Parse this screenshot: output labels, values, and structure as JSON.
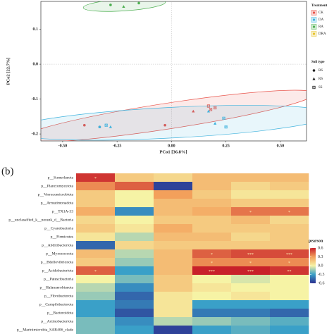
{
  "chart_data": [
    {
      "type": "scatter",
      "xlabel": "PCo1 [36.8%]",
      "ylabel": "PCo2 [22.7%]",
      "xlim": [
        -0.6,
        0.62
      ],
      "ylim": [
        -0.22,
        0.18
      ],
      "xticks": [
        {
          "value": -0.5,
          "label": "-0.50"
        },
        {
          "value": -0.25,
          "label": "-0.25"
        },
        {
          "value": 0,
          "label": "0.00"
        },
        {
          "value": 0.25,
          "label": "0.25"
        },
        {
          "value": 0.5,
          "label": "0.50"
        }
      ],
      "yticks": [
        -0.2,
        -0.1,
        {
          "value": 0,
          "label": "0.0"
        },
        0.1
      ],
      "zero_lines": true,
      "ellipses": true,
      "legend_title": "Treatment",
      "shape_legend_title": "Soil type",
      "shapes": [
        "BS",
        "RS",
        "SS"
      ],
      "series": [
        {
          "name": "CK",
          "color": "#e8534a",
          "x": [
            -0.4,
            -0.33,
            -0.03,
            0.1,
            0.17,
            0.18,
            0.2
          ],
          "y": [
            -0.175,
            -0.18,
            -0.175,
            -0.135,
            -0.12,
            -0.13,
            -0.125
          ],
          "shape": [
            "BS",
            "BS",
            "BS",
            "RS",
            "SS",
            "SS",
            "SS"
          ]
        },
        {
          "name": "DA",
          "color": "#3fb2dd",
          "x": [
            -0.33,
            -0.3,
            -0.28,
            0.17,
            0.2,
            0.24,
            0.25
          ],
          "y": [
            -0.18,
            -0.175,
            -0.18,
            -0.135,
            -0.17,
            -0.155,
            -0.18
          ],
          "shape": [
            "BS",
            "SS",
            "RS",
            "RS",
            "RS",
            "SS",
            "SS"
          ]
        },
        {
          "name": "RA",
          "color": "#4caf50",
          "x": [
            -0.28,
            -0.22,
            -0.15
          ],
          "y": [
            0.17,
            0.165,
            0.175
          ],
          "shape": [
            "BS",
            "RS",
            "BS"
          ]
        },
        {
          "name": "DRA",
          "color": "#e6c229",
          "x": [],
          "y": [],
          "shape": []
        }
      ]
    },
    {
      "type": "heatmap",
      "panel_label": "(b)",
      "legend_title": "pearson",
      "rows": [
        "p__Sumerlaeota",
        "p__Planctomycetota",
        "p__Verrucomicrobiota",
        "p__Armatimonadota",
        "p__TX1A-33",
        "p__unclassified_k__norank_d__Bacteria",
        "p__Cyanobacteria",
        "p__Firmicutes",
        "p__Abditibacteriota",
        "p__Myxococcota",
        "p__Bdellovibrionota",
        "p__Acidobacteriota",
        "p__Patescibacteria",
        "p__Halanaerobiaeota",
        "p__Fibrobacterota",
        "p__Campilobacterota",
        "p__Bacteroidota",
        "p__Actinobacteriota",
        "p__Marinimicrobia_SAR406_clade"
      ],
      "values": [
        [
          0.55,
          0.15,
          0.1,
          0.2,
          0.2,
          0.2
        ],
        [
          0.35,
          0.45,
          -0.55,
          0.2,
          0.1,
          0.15
        ],
        [
          0.15,
          0.0,
          0.3,
          0.15,
          0.05,
          0.05
        ],
        [
          0.15,
          0.0,
          0.2,
          0.2,
          0.15,
          0.15
        ],
        [
          0.25,
          -0.35,
          0.2,
          0.25,
          0.4,
          0.4
        ],
        [
          0.1,
          0.0,
          0.15,
          0.15,
          0.2,
          0.1
        ],
        [
          0.15,
          0.05,
          0.25,
          0.15,
          0.15,
          0.15
        ],
        [
          0.05,
          -0.1,
          0.2,
          0.2,
          0.1,
          0.15
        ],
        [
          -0.45,
          0.1,
          0.15,
          0.15,
          0.15,
          0.15
        ],
        [
          0.2,
          -0.1,
          0.2,
          0.45,
          0.5,
          0.5
        ],
        [
          0.15,
          -0.15,
          0.2,
          0.35,
          0.35,
          0.35
        ],
        [
          0.45,
          -0.3,
          0.2,
          0.6,
          0.6,
          0.55
        ],
        [
          0.0,
          -0.2,
          0.15,
          0.0,
          -0.05,
          0.0
        ],
        [
          -0.1,
          -0.35,
          0.15,
          0.05,
          0.0,
          0.0
        ],
        [
          -0.15,
          -0.45,
          0.05,
          0.0,
          0.05,
          0.0
        ],
        [
          -0.3,
          -0.4,
          0.05,
          -0.3,
          -0.3,
          -0.3
        ],
        [
          -0.3,
          -0.5,
          0.05,
          -0.4,
          -0.4,
          -0.45
        ],
        [
          -0.2,
          -0.35,
          -0.1,
          -0.15,
          -0.2,
          -0.25
        ],
        [
          -0.2,
          -0.3,
          -0.55,
          -0.3,
          -0.25,
          -0.3
        ]
      ],
      "labels": [
        [
          "*",
          null,
          null,
          null,
          null,
          null
        ],
        [
          null,
          null,
          null,
          null,
          null,
          null
        ],
        [
          null,
          null,
          null,
          null,
          null,
          null
        ],
        [
          null,
          null,
          null,
          null,
          null,
          null
        ],
        [
          null,
          null,
          null,
          null,
          "*",
          "*"
        ],
        [
          null,
          null,
          null,
          null,
          null,
          null
        ],
        [
          null,
          null,
          null,
          null,
          null,
          null
        ],
        [
          null,
          null,
          null,
          null,
          null,
          null
        ],
        [
          null,
          null,
          null,
          null,
          null,
          null
        ],
        [
          null,
          null,
          null,
          "*",
          "***",
          "***"
        ],
        [
          null,
          null,
          null,
          "*",
          "*",
          "*"
        ],
        [
          "*",
          null,
          null,
          "***",
          "***",
          "**"
        ],
        [
          null,
          null,
          null,
          null,
          null,
          null
        ],
        [
          null,
          null,
          null,
          null,
          null,
          null
        ],
        [
          null,
          null,
          null,
          null,
          null,
          null
        ],
        [
          null,
          null,
          null,
          null,
          null,
          null
        ],
        [
          null,
          null,
          null,
          null,
          null,
          null
        ],
        [
          null,
          null,
          null,
          null,
          null,
          null
        ],
        [
          null,
          null,
          null,
          null,
          null,
          null
        ]
      ],
      "colorscale": [
        "#2b2f8f",
        "#3aa0c8",
        "#f6f3a5",
        "#f3a05b",
        "#c8202a"
      ],
      "vlim": [
        -0.6,
        0.6
      ],
      "cticks": [
        -0.6,
        -0.3,
        {
          "value": 0,
          "label": "0.0"
        },
        0.3,
        0.6
      ]
    }
  ]
}
